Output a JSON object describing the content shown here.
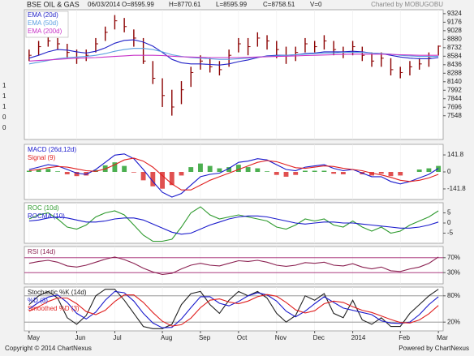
{
  "chart_data": [
    {
      "type": "ohlc",
      "title": "BSE OIL & GAS",
      "date": "06/03/2014",
      "stats": [
        "O=8595.99",
        "H=8770.61",
        "L=8595.99",
        "C=8758.51",
        "V=0"
      ],
      "credit": "Charted by MOBUGOBU",
      "left_labels": [
        "1",
        "1",
        "1",
        "0",
        "0"
      ],
      "categories": [
        "May",
        null,
        null,
        null,
        null,
        "Jun",
        null,
        null,
        null,
        "Jul",
        null,
        null,
        null,
        null,
        "Aug",
        null,
        null,
        null,
        "Sep",
        null,
        null,
        null,
        "Oct",
        null,
        null,
        null,
        "Nov",
        null,
        null,
        null,
        "Dec",
        null,
        null,
        null,
        "2014",
        null,
        null,
        null,
        null,
        "Feb",
        null,
        null,
        null,
        "Mar"
      ],
      "color": "#8b0000",
      "high": [
        8700,
        8850,
        8950,
        8900,
        8800,
        8700,
        8700,
        8900,
        9100,
        9300,
        9250,
        9050,
        8900,
        8500,
        8200,
        8000,
        8150,
        8400,
        8600,
        8550,
        8500,
        8700,
        8900,
        8900,
        9000,
        8950,
        8850,
        8750,
        8750,
        8900,
        8850,
        8950,
        8850,
        8750,
        8850,
        8750,
        8650,
        8650,
        8550,
        8400,
        8500,
        8550,
        8650,
        8770.61
      ],
      "low": [
        8500,
        8600,
        8750,
        8700,
        8550,
        8450,
        8500,
        8650,
        8850,
        9050,
        9000,
        8750,
        8450,
        8100,
        7700,
        7550,
        7750,
        8050,
        8350,
        8300,
        8250,
        8400,
        8650,
        8600,
        8750,
        8700,
        8550,
        8450,
        8500,
        8650,
        8650,
        8700,
        8600,
        8550,
        8600,
        8500,
        8400,
        8400,
        8250,
        8200,
        8250,
        8350,
        8400,
        8595.99
      ],
      "close": [
        8600,
        8750,
        8850,
        8800,
        8650,
        8550,
        8600,
        8800,
        9000,
        9200,
        9100,
        8900,
        8500,
        8200,
        7900,
        7700,
        8000,
        8300,
        8500,
        8400,
        8350,
        8600,
        8800,
        8750,
        8900,
        8850,
        8700,
        8600,
        8650,
        8800,
        8750,
        8850,
        8700,
        8650,
        8750,
        8600,
        8500,
        8550,
        8350,
        8300,
        8400,
        8450,
        8550,
        8758.51
      ],
      "series": [
        {
          "name": "EMA (20d)",
          "color": "#2323c8",
          "values": [
            8550,
            8600,
            8660,
            8700,
            8690,
            8660,
            8640,
            8670,
            8730,
            8810,
            8860,
            8870,
            8830,
            8760,
            8650,
            8530,
            8470,
            8450,
            8450,
            8440,
            8430,
            8450,
            8490,
            8520,
            8560,
            8590,
            8600,
            8600,
            8610,
            8630,
            8640,
            8660,
            8660,
            8660,
            8670,
            8660,
            8640,
            8630,
            8600,
            8570,
            8550,
            8540,
            8540,
            8560
          ]
        },
        {
          "name": "EMA (50d)",
          "color": "#5a9fe0",
          "values": [
            8450,
            8480,
            8510,
            8540,
            8560,
            8570,
            8580,
            8600,
            8630,
            8670,
            8700,
            8720,
            8720,
            8700,
            8660,
            8610,
            8580,
            8560,
            8550,
            8540,
            8530,
            8530,
            8540,
            8550,
            8570,
            8580,
            8590,
            8600,
            8610,
            8620,
            8630,
            8640,
            8640,
            8650,
            8650,
            8650,
            8640,
            8630,
            8620,
            8600,
            8590,
            8580,
            8580,
            8580
          ]
        },
        {
          "name": "EMA (200d)",
          "color": "#c833c8",
          "values": [
            8500,
            8510,
            8520,
            8530,
            8540,
            8550,
            8555,
            8560,
            8570,
            8580,
            8590,
            8600,
            8600,
            8600,
            8595,
            8585,
            8575,
            8570,
            8565,
            8560,
            8560,
            8560,
            8560,
            8565,
            8570,
            8575,
            8580,
            8585,
            8590,
            8595,
            8600,
            8605,
            8610,
            8615,
            8620,
            8620,
            8620,
            8620,
            8615,
            8610,
            8605,
            8600,
            8600,
            8600
          ]
        }
      ],
      "ylim": [
        7135,
        9393
      ],
      "yticks": [
        9324,
        9176,
        9028,
        8880,
        8732,
        8584,
        8436,
        8288,
        8140,
        7992,
        7844,
        7696,
        7548
      ],
      "grid": false
    },
    {
      "type": "macd",
      "histogram_colors": [
        "#4caf50",
        "#e05050"
      ],
      "histogram": [
        10,
        20,
        25,
        5,
        -20,
        -35,
        -30,
        15,
        55,
        80,
        50,
        -5,
        -70,
        -120,
        -140,
        -110,
        -30,
        40,
        70,
        50,
        30,
        40,
        60,
        40,
        30,
        5,
        -25,
        -40,
        -25,
        10,
        10,
        10,
        -15,
        -20,
        0,
        -20,
        -30,
        -15,
        -35,
        -30,
        0,
        20,
        30,
        50
      ],
      "series": [
        {
          "name": "MACD (26d,12d)",
          "color": "#1a1acc",
          "values": [
            20,
            40,
            60,
            50,
            20,
            -10,
            -20,
            20,
            80,
            140,
            150,
            110,
            20,
            -80,
            -170,
            -210,
            -180,
            -110,
            -40,
            -20,
            -10,
            30,
            80,
            90,
            110,
            100,
            60,
            20,
            10,
            40,
            50,
            60,
            30,
            10,
            20,
            -10,
            -40,
            -40,
            -80,
            -100,
            -80,
            -50,
            -20,
            30
          ]
        },
        {
          "name": "Signal (9)",
          "color": "#e02020",
          "values": [
            10,
            20,
            35,
            45,
            40,
            25,
            10,
            5,
            25,
            60,
            100,
            115,
            90,
            40,
            -30,
            -100,
            -150,
            -150,
            -110,
            -70,
            -40,
            -10,
            20,
            50,
            80,
            95,
            85,
            60,
            35,
            30,
            40,
            50,
            45,
            30,
            20,
            10,
            -10,
            -25,
            -45,
            -70,
            -80,
            -70,
            -50,
            -20
          ]
        }
      ],
      "ylim": [
        -230,
        230
      ],
      "yticks": [
        141.8,
        0,
        -141.8
      ],
      "grid": false
    },
    {
      "type": "line",
      "series": [
        {
          "name": "ROC (10d)",
          "color": "#2e9a2e",
          "values": [
            2,
            4,
            5,
            2,
            -2,
            -3,
            -1,
            3,
            5,
            6,
            4,
            -1,
            -6,
            -9,
            -9,
            -8,
            -2,
            5,
            8,
            4,
            2,
            3,
            4,
            3,
            2,
            1,
            -2,
            -3,
            -1,
            2,
            1,
            2,
            -1,
            -2,
            1,
            -2,
            -4,
            -2,
            -5,
            -4,
            -1,
            1,
            3,
            6
          ]
        },
        {
          "name": "ROCMA (10)",
          "color": "#1a1acc",
          "values": [
            1,
            1.5,
            2.5,
            3,
            2.5,
            1.5,
            0.5,
            0.5,
            1,
            2,
            2.5,
            2.5,
            1.5,
            -0.5,
            -2.5,
            -4.5,
            -5.5,
            -5,
            -3,
            -1,
            0.5,
            2,
            3,
            3.5,
            3.5,
            3,
            2,
            1,
            0,
            -0.5,
            0,
            0.5,
            0.5,
            0,
            0,
            -0.5,
            -1,
            -1.5,
            -2,
            -2.5,
            -2.5,
            -2,
            -1,
            0.5
          ]
        }
      ],
      "ylim": [
        -10,
        10
      ],
      "yticks": [
        5,
        0,
        -5
      ],
      "grid": false
    },
    {
      "type": "line",
      "series": [
        {
          "name": "RSI (14d)",
          "color": "#8b2252",
          "values": [
            55,
            60,
            63,
            58,
            48,
            45,
            50,
            58,
            66,
            72,
            65,
            55,
            42,
            32,
            25,
            28,
            40,
            50,
            55,
            50,
            48,
            55,
            62,
            60,
            63,
            58,
            50,
            47,
            50,
            57,
            55,
            58,
            50,
            48,
            54,
            45,
            40,
            45,
            35,
            33,
            40,
            45,
            55,
            72
          ]
        }
      ],
      "ylim": [
        0,
        100
      ],
      "yticks": [
        {
          "value": 70,
          "label": "70%"
        },
        {
          "value": 30,
          "label": "30%"
        }
      ],
      "grid": true,
      "grid_color": "#a0206e"
    },
    {
      "type": "line",
      "series": [
        {
          "name": "Stochastic %K (14d)",
          "color": "#222222",
          "values": [
            60,
            80,
            90,
            75,
            30,
            15,
            35,
            80,
            95,
            95,
            70,
            40,
            10,
            5,
            5,
            15,
            60,
            85,
            90,
            60,
            40,
            70,
            90,
            80,
            90,
            75,
            40,
            20,
            35,
            80,
            70,
            85,
            40,
            30,
            70,
            25,
            15,
            30,
            10,
            10,
            40,
            60,
            80,
            95
          ]
        },
        {
          "name": "%D (3)",
          "color": "#1a1acc",
          "values": [
            50,
            65,
            77,
            82,
            65,
            40,
            27,
            43,
            70,
            90,
            87,
            68,
            40,
            18,
            7,
            8,
            27,
            53,
            78,
            78,
            63,
            57,
            67,
            80,
            87,
            82,
            68,
            45,
            32,
            45,
            62,
            78,
            65,
            52,
            47,
            42,
            37,
            23,
            18,
            17,
            20,
            37,
            60,
            78
          ]
        },
        {
          "name": "Smoothed %D (3)",
          "color": "#e02020",
          "values": [
            45,
            55,
            67,
            75,
            75,
            62,
            44,
            37,
            47,
            67,
            82,
            82,
            65,
            42,
            22,
            11,
            14,
            29,
            53,
            70,
            73,
            66,
            62,
            68,
            78,
            83,
            79,
            65,
            48,
            41,
            46,
            62,
            68,
            65,
            55,
            47,
            42,
            34,
            26,
            19,
            18,
            25,
            39,
            58
          ]
        }
      ],
      "ylim": [
        0,
        100
      ],
      "yticks": [
        {
          "value": 80,
          "label": "80%"
        },
        {
          "value": 20,
          "label": "20%"
        }
      ],
      "grid": true,
      "grid_color": "#888888"
    }
  ],
  "footer": {
    "left": "Copyright © 2014 ChartNexus",
    "right": "Powered by ChartNexus"
  }
}
